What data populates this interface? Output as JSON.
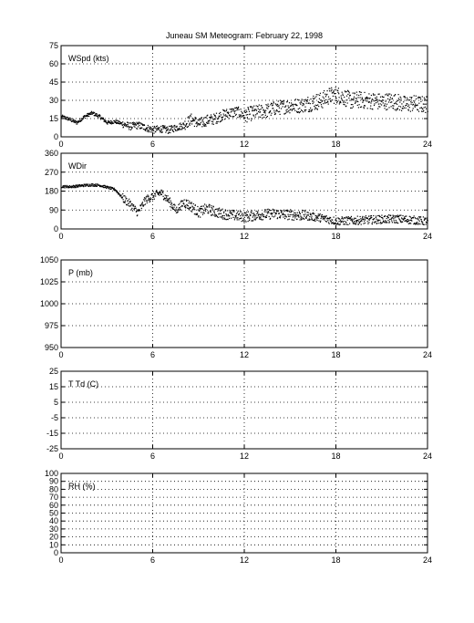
{
  "title": "Juneau SM Meteogram:  February 22, 1998",
  "chart_data": [
    {
      "type": "scatter",
      "label": "WSpd (kts)",
      "xlim": [
        0,
        24
      ],
      "xticks": [
        0,
        6,
        12,
        18,
        24
      ],
      "ylim": [
        0,
        75
      ],
      "yticks": [
        0,
        15,
        30,
        45,
        60,
        75
      ],
      "grid": true,
      "color": "#000000",
      "trend": [
        [
          0,
          17
        ],
        [
          0.5,
          15
        ],
        [
          1,
          12
        ],
        [
          1.5,
          17
        ],
        [
          2,
          20
        ],
        [
          2.5,
          17
        ],
        [
          3,
          12
        ],
        [
          3.5,
          13
        ],
        [
          4,
          11
        ],
        [
          4.5,
          9
        ],
        [
          5,
          10
        ],
        [
          5.5,
          8
        ],
        [
          6,
          6
        ],
        [
          6.5,
          7
        ],
        [
          7,
          6
        ],
        [
          7.5,
          8
        ],
        [
          8,
          10
        ],
        [
          8.5,
          15
        ],
        [
          9,
          11
        ],
        [
          9.5,
          14
        ],
        [
          10,
          15
        ],
        [
          10.5,
          18
        ],
        [
          11,
          20
        ],
        [
          11.5,
          21
        ],
        [
          12,
          18
        ],
        [
          12.5,
          20
        ],
        [
          13,
          21
        ],
        [
          13.5,
          22
        ],
        [
          14,
          24
        ],
        [
          14.5,
          25
        ],
        [
          15,
          26
        ],
        [
          15.5,
          26
        ],
        [
          16,
          27
        ],
        [
          16.5,
          29
        ],
        [
          17,
          30
        ],
        [
          17.5,
          34
        ],
        [
          18,
          35
        ],
        [
          18.5,
          33
        ],
        [
          19,
          30
        ],
        [
          19.5,
          31
        ],
        [
          20,
          30
        ],
        [
          20.5,
          30
        ],
        [
          21,
          29
        ],
        [
          21.5,
          30
        ],
        [
          22,
          29
        ],
        [
          22.5,
          27
        ],
        [
          23,
          28
        ],
        [
          23.5,
          27
        ],
        [
          24,
          27
        ]
      ],
      "spread": [
        1.5,
        3,
        4.5,
        6,
        7,
        7
      ]
    },
    {
      "type": "scatter",
      "label": "WDir",
      "xlim": [
        0,
        24
      ],
      "xticks": [
        0,
        6,
        12,
        18,
        24
      ],
      "ylim": [
        0,
        360
      ],
      "yticks": [
        0,
        90,
        180,
        270,
        360
      ],
      "grid": true,
      "color": "#000000",
      "trend": [
        [
          0,
          205
        ],
        [
          0.5,
          203
        ],
        [
          1,
          206
        ],
        [
          1.5,
          210
        ],
        [
          2,
          212
        ],
        [
          2.5,
          210
        ],
        [
          3,
          200
        ],
        [
          3.5,
          190
        ],
        [
          4,
          150
        ],
        [
          4.5,
          120
        ],
        [
          5,
          80
        ],
        [
          5.5,
          140
        ],
        [
          6,
          160
        ],
        [
          6.5,
          175
        ],
        [
          7,
          140
        ],
        [
          7.5,
          90
        ],
        [
          8,
          130
        ],
        [
          8.5,
          110
        ],
        [
          9,
          80
        ],
        [
          9.5,
          100
        ],
        [
          10,
          85
        ],
        [
          10.5,
          75
        ],
        [
          11,
          70
        ],
        [
          11.5,
          65
        ],
        [
          12,
          60
        ],
        [
          13,
          70
        ],
        [
          14,
          75
        ],
        [
          15,
          70
        ],
        [
          16,
          65
        ],
        [
          17,
          55
        ],
        [
          18,
          40
        ],
        [
          19,
          42
        ],
        [
          20,
          45
        ],
        [
          21,
          48
        ],
        [
          22,
          50
        ],
        [
          23,
          45
        ],
        [
          24,
          38
        ]
      ],
      "spread": [
        6,
        20,
        25,
        25,
        20,
        20
      ]
    },
    {
      "type": "scatter",
      "label": "P (mb)",
      "xlim": [
        0,
        24
      ],
      "xticks": [
        0,
        6,
        12,
        18,
        24
      ],
      "ylim": [
        950,
        1050
      ],
      "yticks": [
        950,
        975,
        1000,
        1025,
        1050
      ],
      "grid": true
    },
    {
      "type": "scatter",
      "label": "T Td (C)",
      "xlim": [
        0,
        24
      ],
      "xticks": [
        0,
        6,
        12,
        18,
        24
      ],
      "ylim": [
        -25,
        25
      ],
      "yticks": [
        -25,
        -15,
        -5,
        5,
        15,
        25
      ],
      "ytick_labels": [
        "-25",
        "-15",
        "-5",
        "5",
        "15",
        "25"
      ],
      "grid": true
    },
    {
      "type": "scatter",
      "label": "RH (%)",
      "xlim": [
        0,
        24
      ],
      "xticks": [
        0,
        6,
        12,
        18,
        24
      ],
      "ylim": [
        0,
        100
      ],
      "yticks": [
        0,
        10,
        20,
        30,
        40,
        50,
        60,
        70,
        80,
        90,
        100
      ],
      "grid": true
    }
  ]
}
